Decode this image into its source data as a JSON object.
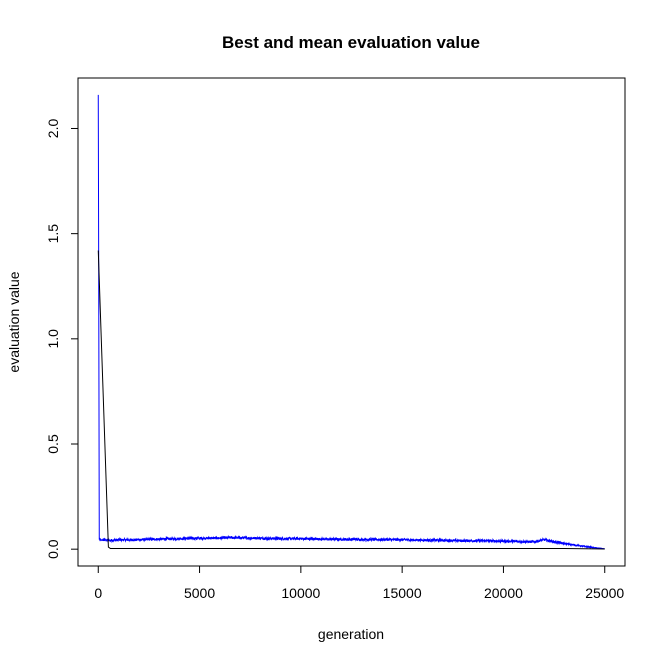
{
  "chart_data": {
    "type": "line",
    "title": "Best and mean evaluation value",
    "xlabel": "generation",
    "ylabel": "evaluation value",
    "xlim": [
      -1000,
      26000
    ],
    "ylim": [
      -0.08,
      2.24
    ],
    "xticks": [
      0,
      5000,
      10000,
      15000,
      20000,
      25000
    ],
    "xtick_labels": [
      "0",
      "5000",
      "10000",
      "15000",
      "20000",
      "25000"
    ],
    "yticks": [
      0.0,
      0.5,
      1.0,
      1.5,
      2.0
    ],
    "ytick_labels": [
      "0.0",
      "0.5",
      "1.0",
      "1.5",
      "2.0"
    ],
    "grid": false,
    "series": [
      {
        "color": "#0000ff",
        "x": [
          0,
          20,
          50,
          100,
          150,
          200,
          500,
          1000,
          2000,
          3000,
          4000,
          5000,
          6000,
          6500,
          7000,
          8000,
          9000,
          10000,
          11000,
          12000,
          13000,
          14000,
          15000,
          16000,
          17000,
          18000,
          19000,
          20000,
          21000,
          21500,
          22000,
          22500,
          23000,
          23500,
          24000,
          24500,
          25000
        ],
        "y": [
          2.16,
          1.42,
          0.05,
          0.045,
          0.04,
          0.045,
          0.042,
          0.044,
          0.045,
          0.048,
          0.05,
          0.052,
          0.053,
          0.055,
          0.054,
          0.052,
          0.05,
          0.05,
          0.048,
          0.047,
          0.046,
          0.046,
          0.045,
          0.043,
          0.042,
          0.04,
          0.04,
          0.038,
          0.036,
          0.035,
          0.045,
          0.035,
          0.027,
          0.02,
          0.013,
          0.007,
          0.002
        ],
        "noise": 0.006
      },
      {
        "color": "#000000",
        "x": [
          0,
          500,
          600,
          2000,
          5000,
          10000,
          15000,
          20000,
          22000,
          23000,
          24000,
          25000
        ],
        "y": [
          1.42,
          0.01,
          0.003,
          0.003,
          0.003,
          0.003,
          0.003,
          0.003,
          0.003,
          0.003,
          0.002,
          0.001
        ]
      }
    ]
  }
}
